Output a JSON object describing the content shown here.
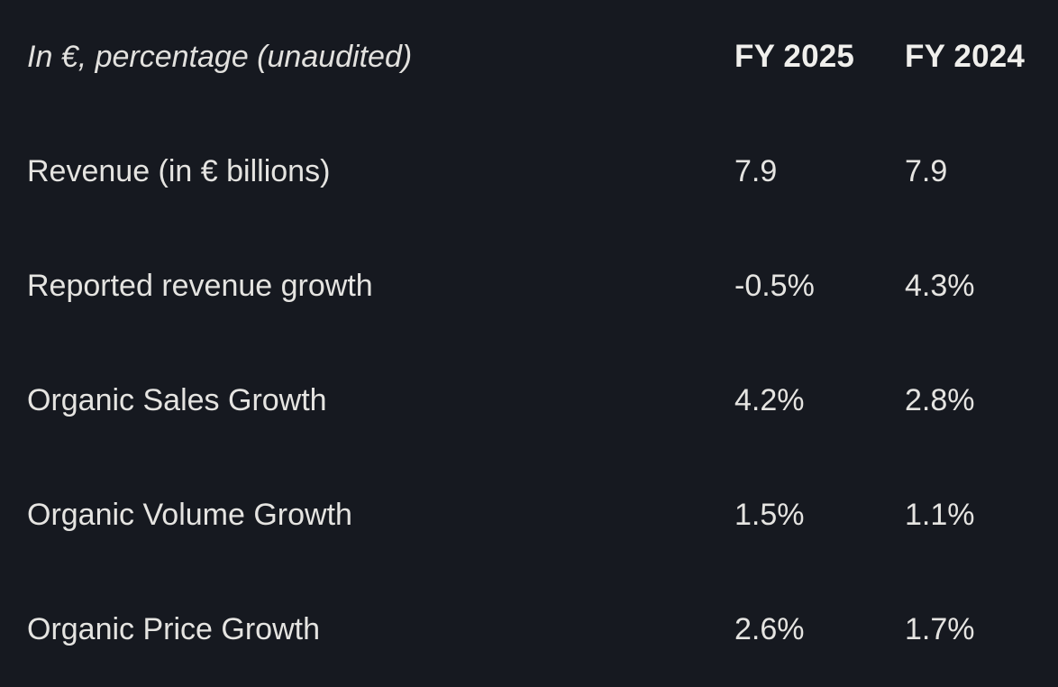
{
  "chart_data": {
    "type": "table",
    "title": "In €, percentage (unaudited)",
    "columns": [
      "FY 2025",
      "FY 2024"
    ],
    "rows": [
      {
        "label": "Revenue (in € billions)",
        "values": [
          "7.9",
          "7.9"
        ]
      },
      {
        "label": "Reported revenue growth",
        "values": [
          "-0.5%",
          "4.3%"
        ]
      },
      {
        "label": "Organic Sales Growth",
        "values": [
          "4.2%",
          "2.8%"
        ]
      },
      {
        "label": "Organic Volume Growth",
        "values": [
          "1.5%",
          "1.1%"
        ]
      },
      {
        "label": "Organic Price Growth",
        "values": [
          "2.6%",
          "1.7%"
        ]
      }
    ],
    "layout": {
      "legend": "none",
      "grid": "off",
      "value_alignment": "left"
    }
  },
  "colors": {
    "background": "#161920",
    "body_text": "#e5e4e1",
    "header_text": "#f0efec"
  }
}
